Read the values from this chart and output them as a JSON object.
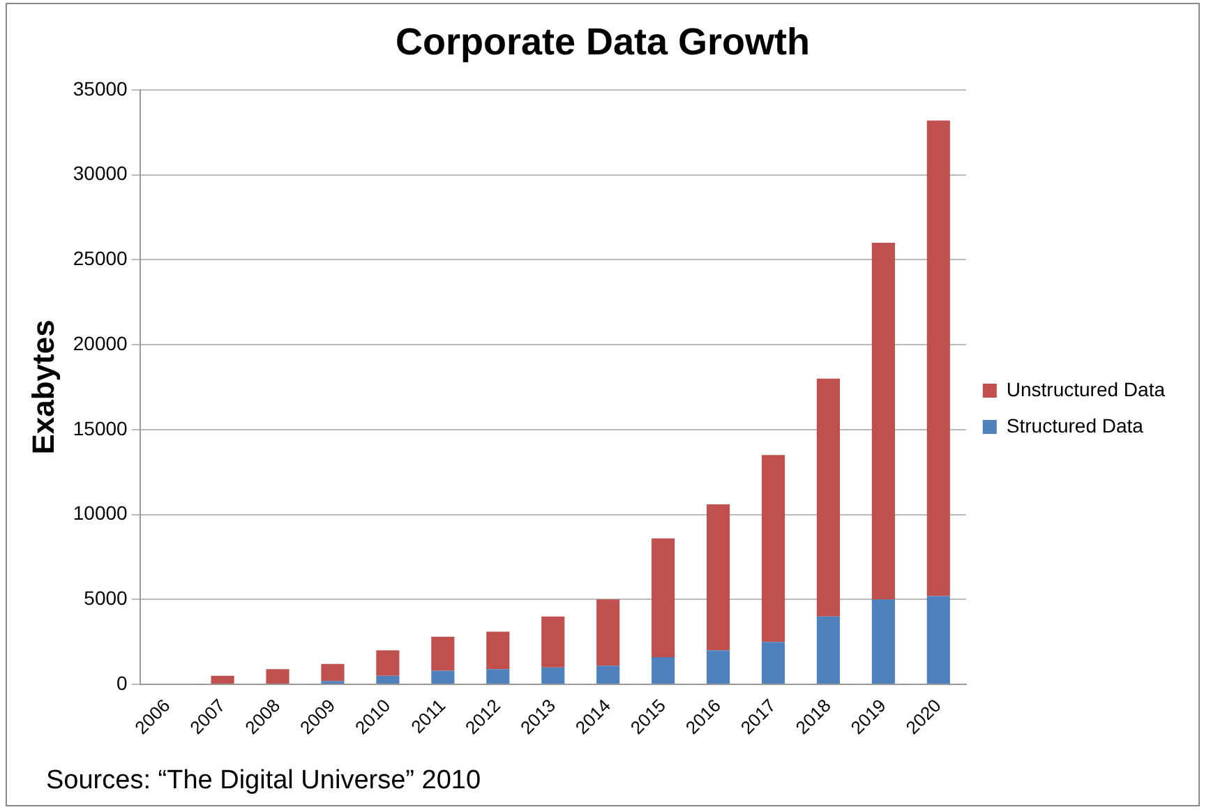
{
  "chart_data": {
    "type": "bar",
    "title": "Corporate Data Growth",
    "ylabel": "Exabytes",
    "stacked": true,
    "categories": [
      "2006",
      "2007",
      "2008",
      "2009",
      "2010",
      "2011",
      "2012",
      "2013",
      "2014",
      "2015",
      "2016",
      "2017",
      "2018",
      "2019",
      "2020"
    ],
    "series": [
      {
        "name": "Structured Data",
        "color": "#4f81bd",
        "values": [
          0,
          0,
          0,
          200,
          500,
          800,
          900,
          1000,
          1100,
          1600,
          2000,
          2500,
          4000,
          5000,
          5200
        ]
      },
      {
        "name": "Unstructured Data",
        "color": "#c0504d",
        "values": [
          0,
          500,
          900,
          1000,
          1500,
          2000,
          2200,
          3000,
          3900,
          7000,
          8600,
          11000,
          14000,
          21000,
          28000
        ]
      }
    ],
    "ylim": [
      0,
      35000
    ],
    "yticks": [
      0,
      5000,
      10000,
      15000,
      20000,
      25000,
      30000,
      35000
    ],
    "grid": "y",
    "legend": "right",
    "annotations": [
      "Sources:  “The Digital Universe” 2010"
    ]
  }
}
